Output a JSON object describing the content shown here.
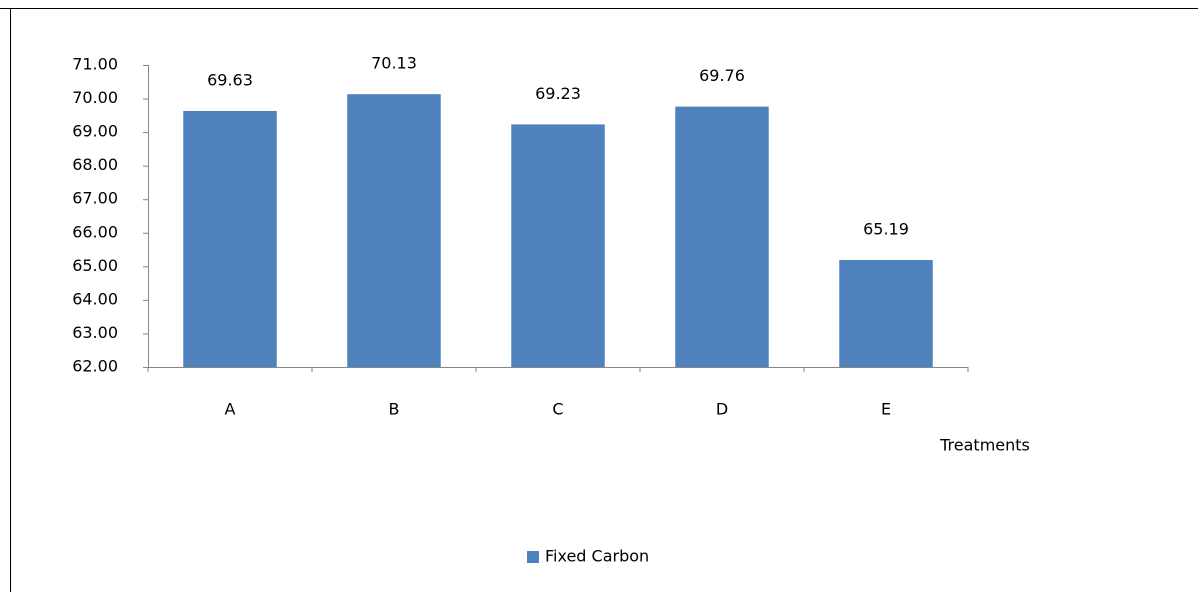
{
  "chart_data": {
    "type": "bar",
    "x_label": "Treatments",
    "categories": [
      "A",
      "B",
      "C",
      "D",
      "E"
    ],
    "series": [
      {
        "name": "Fixed Carbon",
        "color": "#4f81bd",
        "values": [
          69.63,
          70.13,
          69.23,
          69.76,
          65.19
        ]
      }
    ],
    "ylim": [
      62,
      71
    ],
    "yticks": [
      {
        "value": 62,
        "label": "62.00"
      },
      {
        "value": 63,
        "label": "63.00"
      },
      {
        "value": 64,
        "label": "64.00"
      },
      {
        "value": 65,
        "label": "65.00"
      },
      {
        "value": 66,
        "label": "66.00"
      },
      {
        "value": 67,
        "label": "67.00"
      },
      {
        "value": 68,
        "label": "68.00"
      },
      {
        "value": 69,
        "label": "69.00"
      },
      {
        "value": 70,
        "label": "70.00"
      },
      {
        "value": 71,
        "label": "71.00"
      }
    ],
    "grid": false,
    "legend": "bottom"
  }
}
